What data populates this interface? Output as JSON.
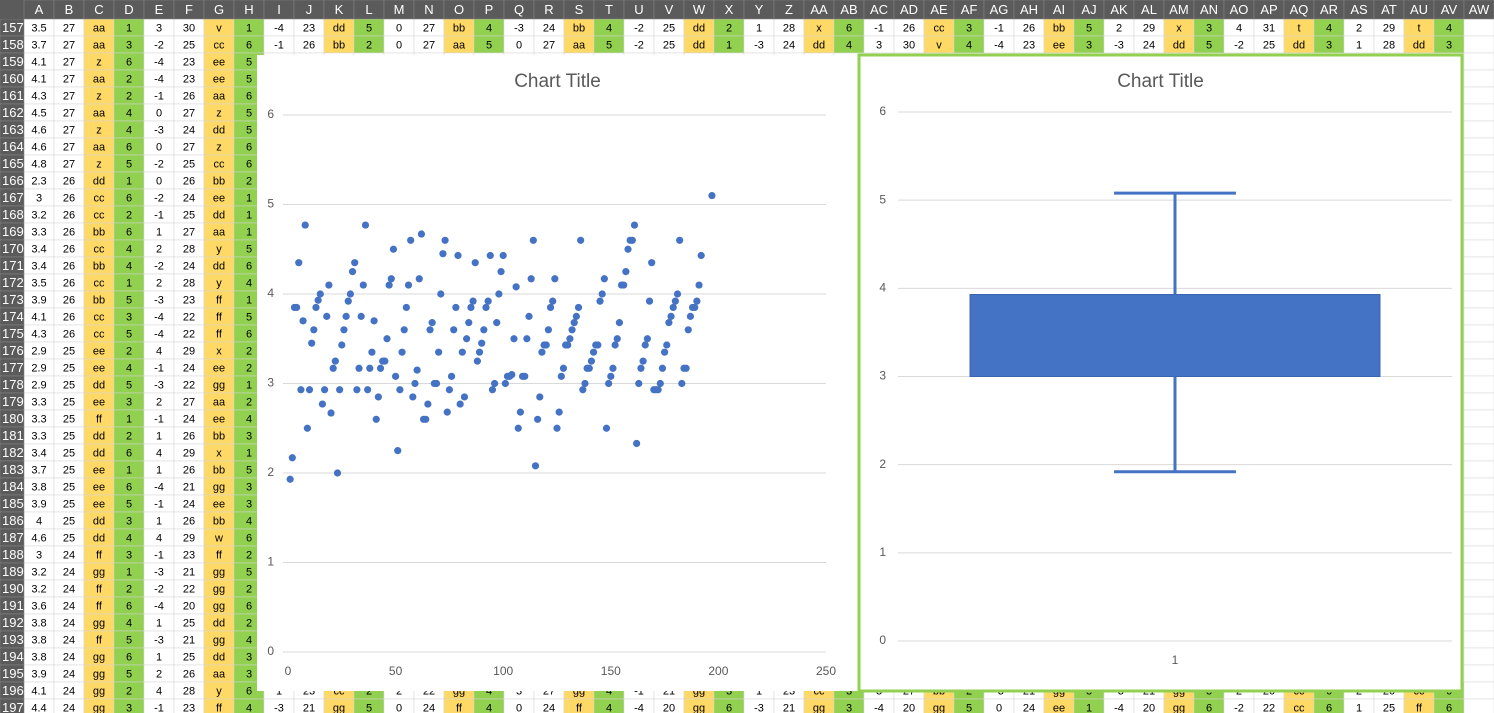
{
  "sheet": {
    "columns": [
      "A",
      "B",
      "C",
      "D",
      "E",
      "F",
      "G",
      "H",
      "I",
      "J",
      "K",
      "L",
      "M",
      "N",
      "O",
      "P",
      "Q",
      "R",
      "S",
      "T",
      "U",
      "V",
      "W",
      "X",
      "Y",
      "Z",
      "AA",
      "AB",
      "AC",
      "AD",
      "AE",
      "AF",
      "AG",
      "AH",
      "AI",
      "AJ",
      "AK",
      "AL",
      "AM",
      "AN",
      "AO",
      "AP",
      "AQ",
      "AR",
      "AS",
      "AT",
      "AU",
      "AV",
      "AW"
    ],
    "rows": [
      {
        "label": "157",
        "cells": [
          3.5,
          27,
          "aa",
          1,
          3,
          30,
          "v",
          1,
          -4,
          23,
          "dd",
          5,
          0,
          27,
          "bb",
          4,
          -3,
          24,
          "bb",
          4,
          -2,
          25,
          "dd",
          2,
          1,
          28,
          "x",
          6,
          -1,
          26,
          "cc",
          3,
          -1,
          26,
          "bb",
          5,
          2,
          29,
          "x",
          3,
          4,
          31,
          "t",
          4,
          2,
          29,
          "t",
          4
        ]
      },
      {
        "label": "158",
        "cells": [
          3.7,
          27,
          "aa",
          3,
          -2,
          25,
          "cc",
          6,
          -1,
          26,
          "bb",
          2,
          0,
          27,
          "aa",
          5,
          0,
          27,
          "aa",
          5,
          -2,
          25,
          "dd",
          1,
          -3,
          24,
          "dd",
          4,
          3,
          30,
          "v",
          4,
          -4,
          23,
          "ee",
          3,
          -3,
          24,
          "dd",
          5,
          -2,
          25,
          "dd",
          3,
          1,
          28,
          "dd",
          3
        ]
      },
      {
        "label": "159",
        "cells": [
          4.1,
          27,
          "z",
          6,
          -4,
          23,
          "ee",
          5
        ]
      },
      {
        "label": "160",
        "cells": [
          4.1,
          27,
          "aa",
          2,
          -4,
          23,
          "ee",
          5
        ]
      },
      {
        "label": "161",
        "cells": [
          4.3,
          27,
          "z",
          2,
          -1,
          26,
          "aa",
          6
        ]
      },
      {
        "label": "162",
        "cells": [
          4.5,
          27,
          "aa",
          4,
          0,
          27,
          "z",
          5
        ]
      },
      {
        "label": "163",
        "cells": [
          4.6,
          27,
          "z",
          4,
          -3,
          24,
          "dd",
          5
        ]
      },
      {
        "label": "164",
        "cells": [
          4.6,
          27,
          "aa",
          6,
          0,
          27,
          "z",
          6
        ]
      },
      {
        "label": "165",
        "cells": [
          4.8,
          27,
          "z",
          5,
          -2,
          25,
          "cc",
          6
        ]
      },
      {
        "label": "166",
        "cells": [
          2.3,
          26,
          "dd",
          1,
          0,
          26,
          "bb",
          2
        ]
      },
      {
        "label": "167",
        "cells": [
          3,
          26,
          "cc",
          6,
          -2,
          24,
          "ee",
          1
        ]
      },
      {
        "label": "168",
        "cells": [
          3.2,
          26,
          "cc",
          2,
          -1,
          25,
          "dd",
          1
        ]
      },
      {
        "label": "169",
        "cells": [
          3.3,
          26,
          "bb",
          6,
          1,
          27,
          "aa",
          1
        ]
      },
      {
        "label": "170",
        "cells": [
          3.4,
          26,
          "cc",
          4,
          2,
          28,
          "y",
          5
        ]
      },
      {
        "label": "171",
        "cells": [
          3.4,
          26,
          "bb",
          4,
          -2,
          24,
          "dd",
          6
        ]
      },
      {
        "label": "172",
        "cells": [
          3.5,
          26,
          "cc",
          1,
          2,
          28,
          "y",
          4
        ]
      },
      {
        "label": "173",
        "cells": [
          3.9,
          26,
          "bb",
          5,
          -3,
          23,
          "ff",
          1
        ]
      },
      {
        "label": "174",
        "cells": [
          4.1,
          26,
          "cc",
          3,
          -4,
          22,
          "ff",
          5
        ]
      },
      {
        "label": "175",
        "cells": [
          4.3,
          26,
          "cc",
          5,
          -4,
          22,
          "ff",
          6
        ]
      },
      {
        "label": "176",
        "cells": [
          2.9,
          25,
          "ee",
          2,
          4,
          29,
          "x",
          2
        ]
      },
      {
        "label": "177",
        "cells": [
          2.9,
          25,
          "ee",
          4,
          -1,
          24,
          "ee",
          2
        ]
      },
      {
        "label": "178",
        "cells": [
          2.9,
          25,
          "dd",
          5,
          -3,
          22,
          "gg",
          1
        ]
      },
      {
        "label": "179",
        "cells": [
          3.3,
          25,
          "ee",
          3,
          2,
          27,
          "aa",
          2
        ]
      },
      {
        "label": "180",
        "cells": [
          3.3,
          25,
          "ff",
          1,
          -1,
          24,
          "ee",
          4
        ]
      },
      {
        "label": "181",
        "cells": [
          3.3,
          25,
          "dd",
          2,
          1,
          26,
          "bb",
          3
        ]
      },
      {
        "label": "182",
        "cells": [
          3.4,
          25,
          "dd",
          6,
          4,
          29,
          "x",
          1
        ]
      },
      {
        "label": "183",
        "cells": [
          3.7,
          25,
          "ee",
          1,
          1,
          26,
          "bb",
          5
        ]
      },
      {
        "label": "184",
        "cells": [
          3.8,
          25,
          "ee",
          6,
          -4,
          21,
          "gg",
          3
        ]
      },
      {
        "label": "185",
        "cells": [
          3.9,
          25,
          "ee",
          5,
          -1,
          24,
          "ee",
          3
        ]
      },
      {
        "label": "186",
        "cells": [
          4,
          25,
          "dd",
          3,
          1,
          26,
          "bb",
          4
        ]
      },
      {
        "label": "187",
        "cells": [
          4.6,
          25,
          "dd",
          4,
          4,
          29,
          "w",
          6
        ]
      },
      {
        "label": "188",
        "cells": [
          3,
          24,
          "ff",
          3,
          -1,
          23,
          "ff",
          2
        ]
      },
      {
        "label": "189",
        "cells": [
          3.2,
          24,
          "gg",
          1,
          -3,
          21,
          "gg",
          5
        ]
      },
      {
        "label": "190",
        "cells": [
          3.2,
          24,
          "ff",
          2,
          -2,
          22,
          "gg",
          2
        ]
      },
      {
        "label": "191",
        "cells": [
          3.6,
          24,
          "ff",
          6,
          -4,
          20,
          "gg",
          6
        ]
      },
      {
        "label": "192",
        "cells": [
          3.8,
          24,
          "gg",
          4,
          1,
          25,
          "dd",
          2
        ]
      },
      {
        "label": "193",
        "cells": [
          3.8,
          24,
          "ff",
          5,
          -3,
          21,
          "gg",
          4
        ]
      },
      {
        "label": "194",
        "cells": [
          3.8,
          24,
          "gg",
          6,
          1,
          25,
          "dd",
          3
        ]
      },
      {
        "label": "195",
        "cells": [
          3.9,
          24,
          "gg",
          5,
          2,
          26,
          "aa",
          3
        ]
      },
      {
        "label": "196",
        "cells": [
          4.1,
          24,
          "gg",
          2,
          4,
          28,
          "y",
          6,
          1,
          23,
          "cc",
          2,
          2,
          22,
          "gg",
          4,
          3,
          27,
          "gg",
          4,
          -1,
          21,
          "gg",
          3,
          1,
          23,
          "cc",
          3,
          3,
          27,
          "bb",
          2,
          -3,
          21,
          "gg",
          3,
          -3,
          21,
          "gg",
          3,
          2,
          20,
          "cc",
          6,
          2,
          20,
          "cc",
          6
        ]
      },
      {
        "label": "197",
        "cells": [
          4.4,
          24,
          "gg",
          3,
          -1,
          23,
          "ff",
          4,
          -3,
          21,
          "gg",
          5,
          0,
          24,
          "ff",
          4,
          0,
          24,
          "ff",
          4,
          -4,
          20,
          "gg",
          6,
          -3,
          21,
          "gg",
          3,
          -4,
          20,
          "gg",
          5,
          0,
          24,
          "ee",
          1,
          -4,
          20,
          "gg",
          6,
          -2,
          22,
          "cc",
          6,
          1,
          25,
          "ff",
          6
        ]
      }
    ]
  },
  "chart_data": [
    {
      "type": "scatter",
      "title": "Chart Title",
      "color": "#4472c4",
      "x": [
        1,
        2,
        3,
        4,
        5,
        6,
        7,
        8,
        9,
        10,
        11,
        12,
        13,
        14,
        15,
        16,
        17,
        18,
        19,
        20,
        21,
        22,
        23,
        24,
        25,
        26,
        27,
        28,
        29,
        30,
        31,
        32,
        33,
        34,
        35,
        36,
        37,
        38,
        39,
        40,
        41,
        42,
        43,
        44,
        45,
        46,
        47,
        48,
        49,
        50,
        51,
        52,
        53,
        54,
        55,
        56,
        57,
        58,
        59,
        60,
        61,
        62,
        63,
        64,
        65,
        66,
        67,
        68,
        69,
        70,
        71,
        72,
        73,
        74,
        75,
        76,
        77,
        78,
        79,
        80,
        81,
        82,
        83,
        84,
        85,
        86,
        87,
        88,
        89,
        90,
        91,
        92,
        93,
        94,
        95,
        96,
        97,
        98,
        99,
        100,
        101,
        102,
        103,
        104,
        105,
        106,
        107,
        108,
        109,
        110,
        111,
        112,
        113,
        114,
        115,
        116,
        117,
        118,
        119,
        120,
        121,
        122,
        123,
        124,
        125,
        126,
        127,
        128,
        129,
        130,
        131,
        132,
        133,
        134,
        135,
        136,
        137,
        138,
        139,
        140,
        141,
        142,
        143,
        144,
        145,
        146,
        147,
        148,
        149,
        150,
        151,
        152,
        153,
        154,
        155,
        156,
        157,
        158,
        159,
        160,
        161,
        162,
        163,
        164,
        165,
        166,
        167,
        168,
        169,
        170,
        171,
        172,
        173,
        174,
        175,
        176,
        177,
        178,
        179,
        180,
        181,
        182,
        183,
        184,
        185,
        186,
        187,
        188,
        189,
        190,
        191,
        192,
        197
      ],
      "values": [
        1.93,
        2.17,
        3.85,
        3.85,
        4.35,
        2.93,
        3.7,
        4.77,
        2.5,
        2.93,
        3.45,
        3.6,
        3.85,
        3.93,
        4.0,
        2.77,
        2.93,
        3.75,
        4.1,
        2.67,
        3.17,
        3.25,
        2.0,
        2.93,
        3.43,
        3.6,
        3.75,
        3.92,
        4.0,
        4.25,
        4.35,
        2.93,
        3.17,
        3.75,
        4.1,
        4.77,
        2.93,
        3.17,
        3.35,
        3.7,
        2.6,
        2.85,
        3.17,
        3.25,
        3.25,
        3.5,
        4.1,
        4.17,
        4.5,
        3.08,
        2.25,
        2.93,
        3.35,
        3.6,
        3.85,
        4.1,
        4.6,
        2.85,
        3.0,
        3.15,
        4.17,
        4.67,
        2.6,
        2.6,
        2.77,
        3.6,
        3.68,
        3.0,
        3.0,
        3.35,
        4.0,
        4.45,
        4.6,
        2.68,
        2.93,
        3.08,
        3.6,
        3.85,
        4.43,
        2.77,
        3.35,
        2.85,
        3.5,
        3.68,
        3.85,
        3.92,
        4.35,
        3.25,
        3.35,
        3.45,
        3.6,
        3.85,
        3.92,
        4.43,
        2.93,
        3.0,
        3.68,
        4.0,
        4.25,
        4.43,
        3.0,
        3.08,
        3.08,
        3.1,
        3.5,
        4.08,
        2.5,
        2.68,
        3.08,
        3.08,
        3.5,
        3.75,
        4.17,
        4.6,
        2.08,
        2.6,
        2.85,
        3.35,
        3.43,
        3.43,
        3.6,
        3.85,
        3.92,
        4.17,
        2.5,
        2.68,
        3.08,
        3.17,
        3.43,
        3.43,
        3.5,
        3.6,
        3.68,
        3.75,
        3.85,
        4.6,
        2.93,
        3.0,
        3.17,
        3.17,
        3.25,
        3.35,
        3.43,
        3.43,
        3.92,
        4.0,
        4.17,
        2.5,
        3.0,
        3.08,
        3.17,
        3.43,
        3.5,
        3.68,
        4.1,
        4.1,
        4.25,
        4.5,
        4.6,
        4.6,
        4.77,
        2.33,
        3.0,
        3.17,
        3.25,
        3.43,
        3.5,
        3.92,
        4.35,
        2.93,
        2.93,
        2.93,
        3.0,
        3.17,
        3.35,
        3.43,
        3.68,
        3.75,
        3.85,
        3.92,
        4.0,
        4.6,
        3.0,
        3.17,
        3.17,
        3.6,
        3.75,
        3.85,
        3.85,
        3.92,
        4.1,
        4.43,
        5.1
      ],
      "xlim": [
        0,
        250
      ],
      "xticks": [
        0,
        50,
        100,
        150,
        200,
        250
      ],
      "ylim": [
        0,
        6
      ],
      "yticks": [
        0,
        1,
        2,
        3,
        4,
        5,
        6
      ],
      "grid": true
    },
    {
      "type": "box",
      "title": "Chart Title",
      "color": "#4472c4",
      "categories": [
        "1"
      ],
      "series": [
        {
          "min": 1.92,
          "q1": 3.0,
          "q3": 3.93,
          "max": 5.08
        }
      ],
      "ylim": [
        0,
        6
      ],
      "yticks": [
        0,
        1,
        2,
        3,
        4,
        5,
        6
      ],
      "grid": true
    }
  ]
}
